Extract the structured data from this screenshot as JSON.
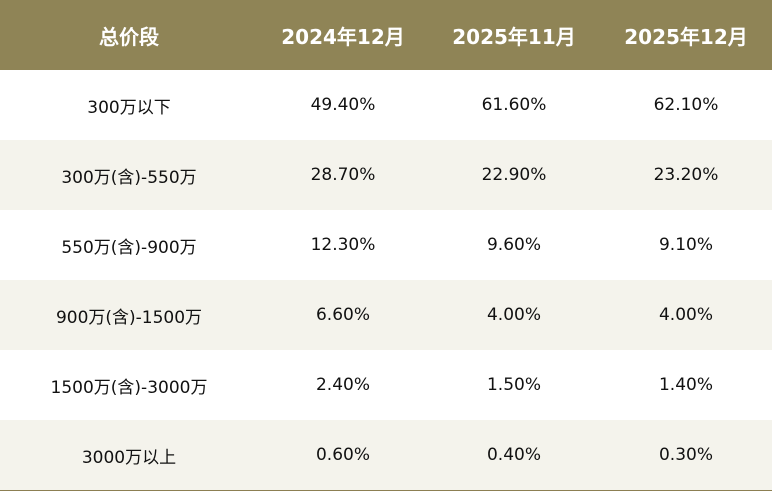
{
  "chart_data": {
    "type": "table",
    "columns": [
      "总价段",
      "2024年12月",
      "2025年11月",
      "2025年12月"
    ],
    "rows": [
      {
        "segment": "300万以下",
        "values": [
          "49.40%",
          "61.60%",
          "62.10%"
        ]
      },
      {
        "segment": "300万(含)-550万",
        "values": [
          "28.70%",
          "22.90%",
          "23.20%"
        ]
      },
      {
        "segment": "550万(含)-900万",
        "values": [
          "12.30%",
          "9.60%",
          "9.10%"
        ]
      },
      {
        "segment": "900万(含)-1500万",
        "values": [
          "6.60%",
          "4.00%",
          "4.00%"
        ]
      },
      {
        "segment": "1500万(含)-3000万",
        "values": [
          "2.40%",
          "1.50%",
          "1.40%"
        ]
      },
      {
        "segment": "3000万以上",
        "values": [
          "0.60%",
          "0.40%",
          "0.30%"
        ]
      }
    ]
  },
  "colors": {
    "header_background": "#8f8456",
    "header_text": "#ffffff",
    "row_stripe": "#f4f3ec",
    "row_plain": "#ffffff",
    "cell_text": "#111111"
  }
}
